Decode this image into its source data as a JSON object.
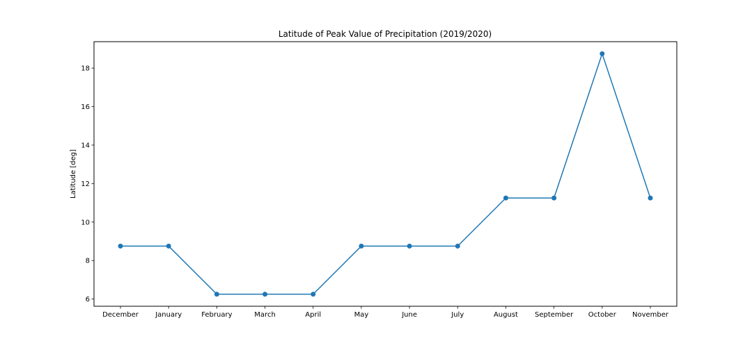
{
  "chart_data": {
    "type": "line",
    "title": "Latitude of Peak Value of Precipitation (2019/2020)",
    "xlabel": "",
    "ylabel": "Latitude [deg]",
    "categories": [
      "December",
      "January",
      "February",
      "March",
      "April",
      "May",
      "June",
      "July",
      "August",
      "September",
      "October",
      "November"
    ],
    "series": [
      {
        "values": [
          8.75,
          8.75,
          6.25,
          6.25,
          6.25,
          8.75,
          8.75,
          8.75,
          11.25,
          11.25,
          18.75,
          11.25
        ],
        "color": "#1f77b4",
        "marker": "circle"
      }
    ],
    "ylim": [
      5.625,
      19.375
    ],
    "yticks": [
      6,
      8,
      10,
      12,
      14,
      16,
      18
    ],
    "grid": false,
    "legend": "none"
  }
}
